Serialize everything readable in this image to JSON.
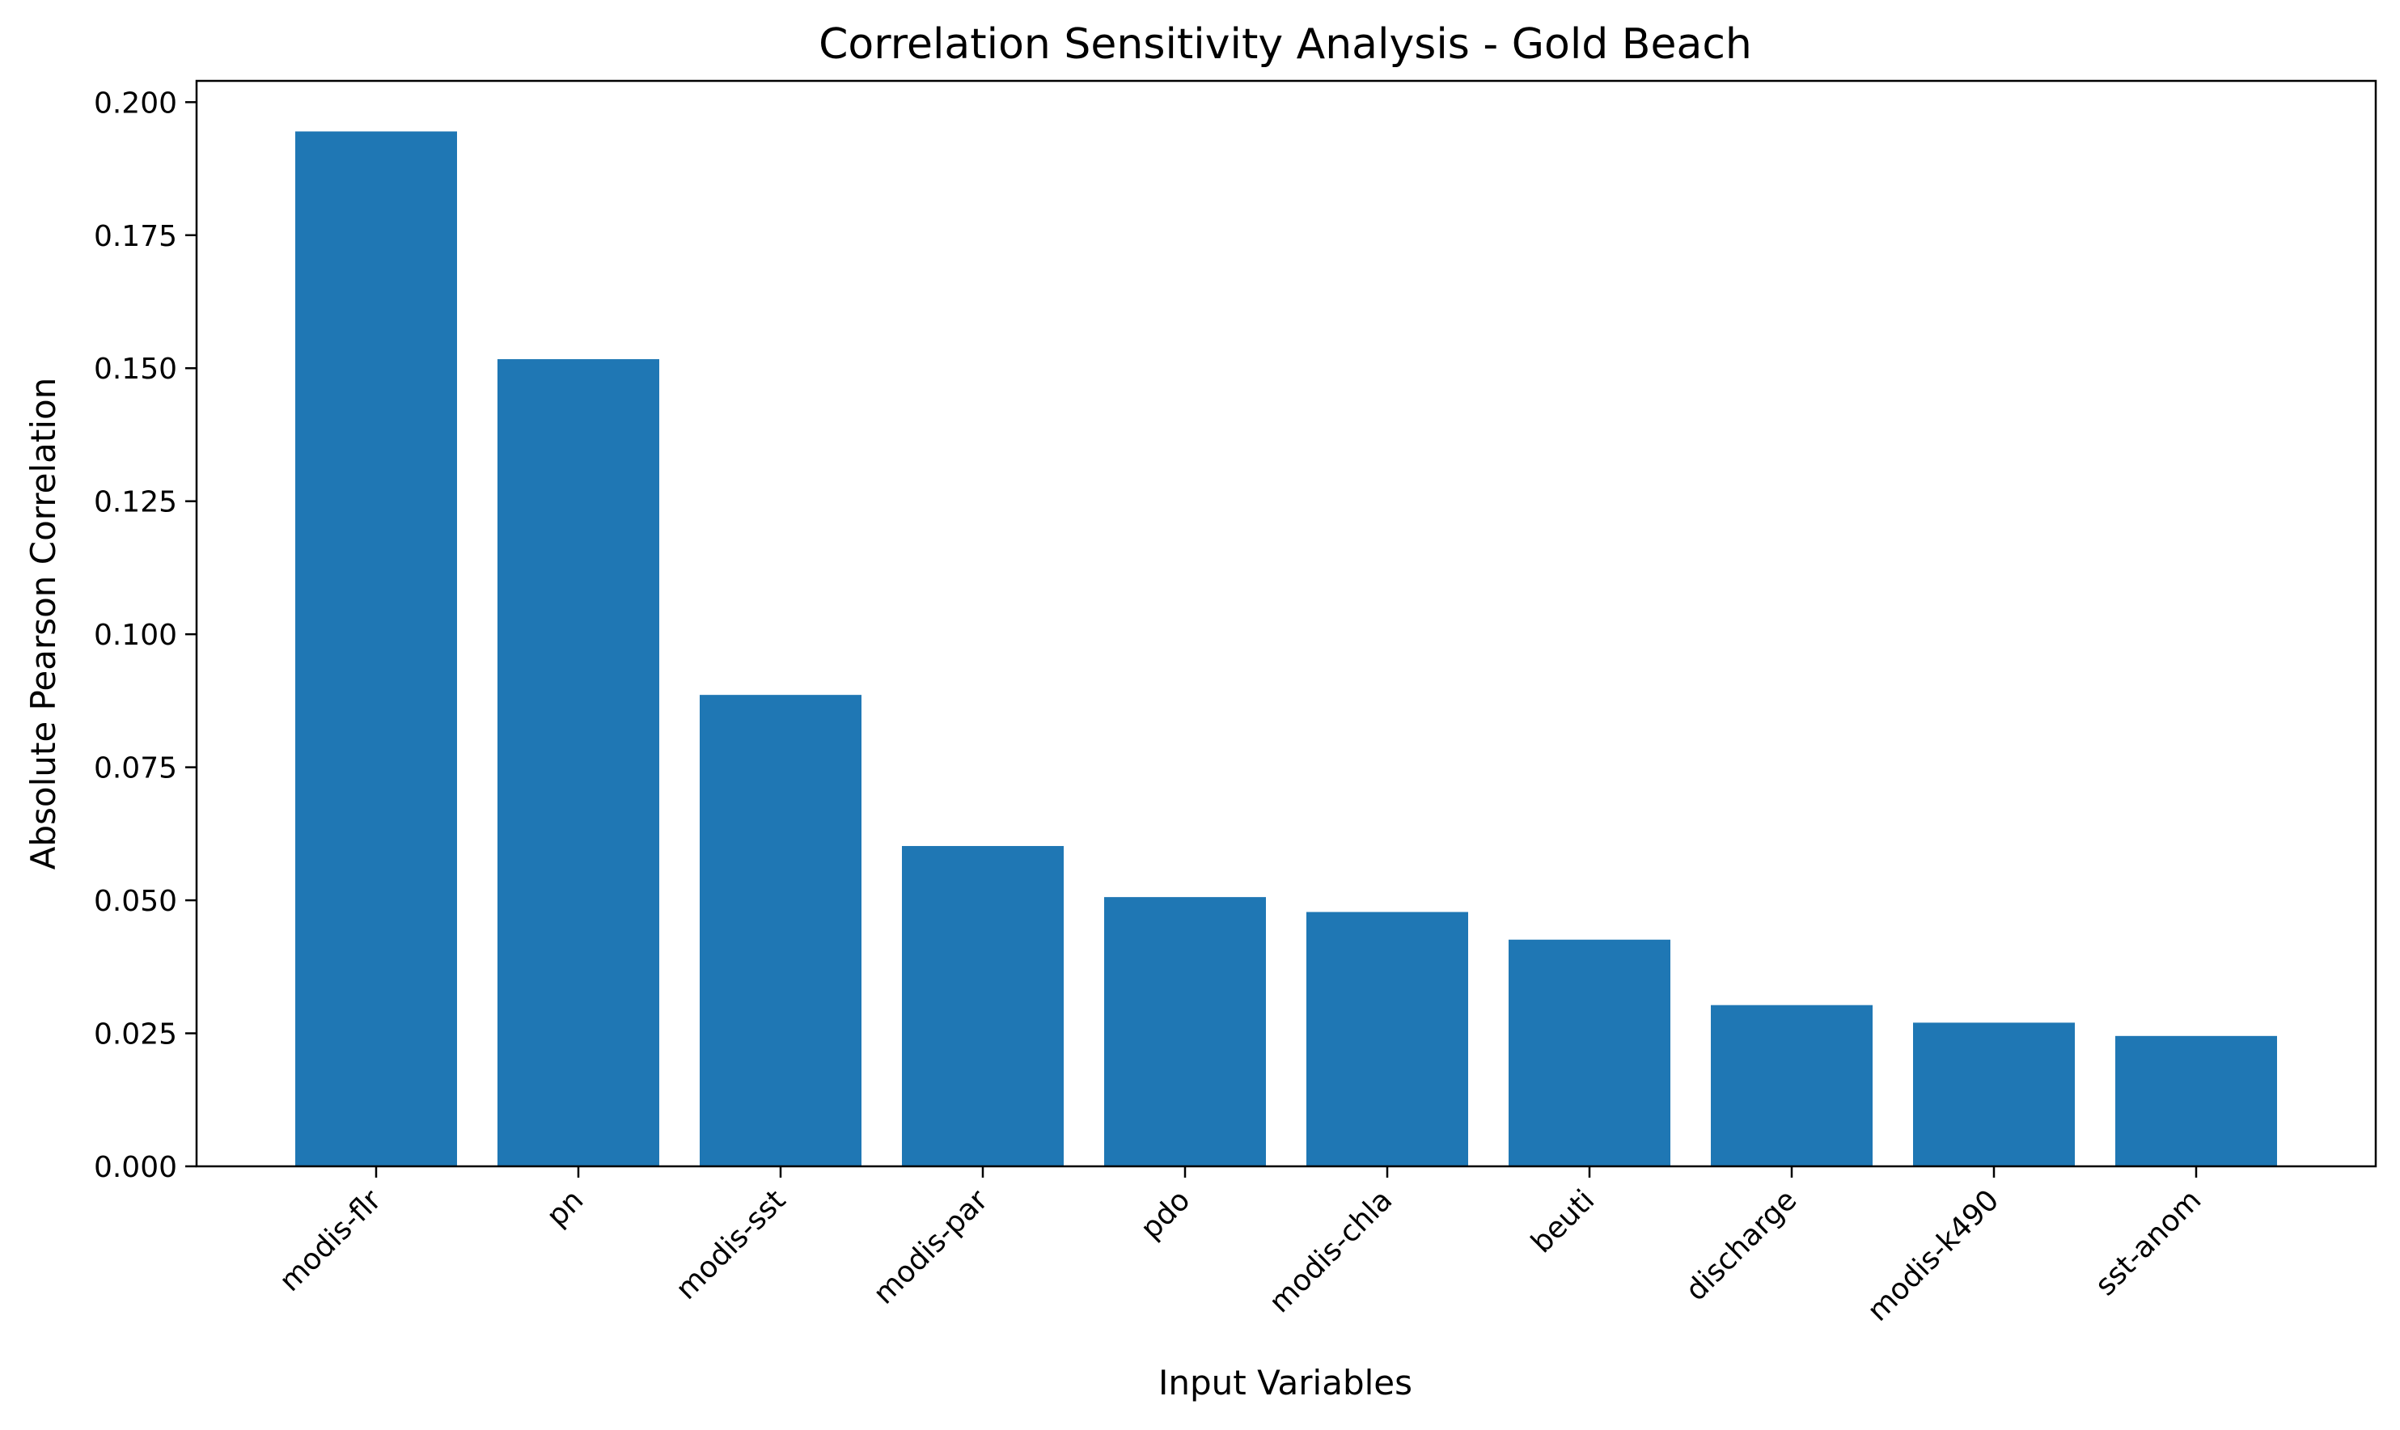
{
  "chart_data": {
    "type": "bar",
    "title": "Correlation Sensitivity Analysis - Gold Beach",
    "xlabel": "Input Variables",
    "ylabel": "Absolute Pearson Correlation",
    "categories": [
      "modis-flr",
      "pn",
      "modis-sst",
      "modis-par",
      "pdo",
      "modis-chla",
      "beuti",
      "discharge",
      "modis-k490",
      "sst-anom"
    ],
    "values": [
      0.1945,
      0.1517,
      0.0886,
      0.0602,
      0.0506,
      0.0478,
      0.0426,
      0.0303,
      0.027,
      0.0245
    ],
    "ylim": [
      0,
      0.204
    ],
    "yticks": [
      "0.000",
      "0.025",
      "0.050",
      "0.075",
      "0.100",
      "0.125",
      "0.150",
      "0.175",
      "0.200"
    ],
    "grid": false,
    "bar_color": "#1f77b4",
    "xtick_rotation": "45 degrees"
  }
}
